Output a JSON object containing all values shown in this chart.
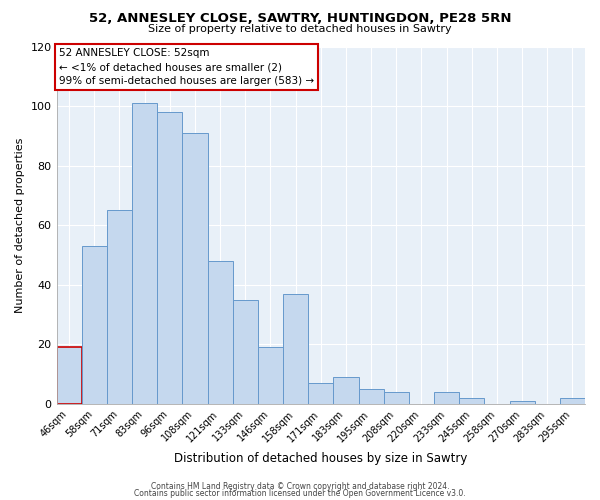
{
  "title": "52, ANNESLEY CLOSE, SAWTRY, HUNTINGDON, PE28 5RN",
  "subtitle": "Size of property relative to detached houses in Sawtry",
  "xlabel": "Distribution of detached houses by size in Sawtry",
  "ylabel": "Number of detached properties",
  "bar_labels": [
    "46sqm",
    "58sqm",
    "71sqm",
    "83sqm",
    "96sqm",
    "108sqm",
    "121sqm",
    "133sqm",
    "146sqm",
    "158sqm",
    "171sqm",
    "183sqm",
    "195sqm",
    "208sqm",
    "220sqm",
    "233sqm",
    "245sqm",
    "258sqm",
    "270sqm",
    "283sqm",
    "295sqm"
  ],
  "bar_values": [
    19,
    53,
    65,
    101,
    98,
    91,
    48,
    35,
    19,
    37,
    7,
    9,
    5,
    4,
    0,
    4,
    2,
    0,
    1,
    0,
    2
  ],
  "bar_color": "#c5d8ee",
  "highlight_edge_color": "#cc0000",
  "normal_edge_color": "#6699cc",
  "annotation_line1": "52 ANNESLEY CLOSE: 52sqm",
  "annotation_line2": "← <1% of detached houses are smaller (2)",
  "annotation_line3": "99% of semi-detached houses are larger (583) →",
  "annotation_box_edge": "#cc0000",
  "ylim": [
    0,
    120
  ],
  "yticks": [
    0,
    20,
    40,
    60,
    80,
    100,
    120
  ],
  "footer1": "Contains HM Land Registry data © Crown copyright and database right 2024.",
  "footer2": "Contains public sector information licensed under the Open Government Licence v3.0.",
  "bg_color": "#e8f0f8"
}
